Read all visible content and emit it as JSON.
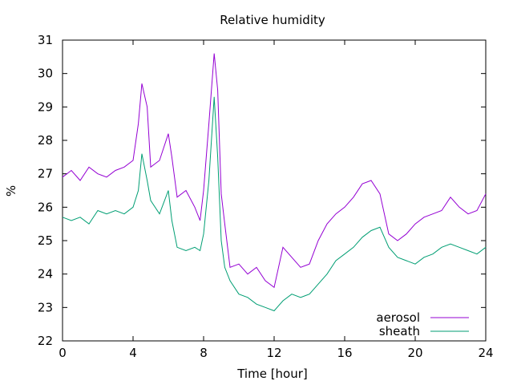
{
  "chart_data": {
    "type": "line",
    "title": "Relative humidity",
    "xlabel": "Time [hour]",
    "ylabel": "%",
    "xlim": [
      0,
      24
    ],
    "ylim": [
      22,
      31
    ],
    "xticks": [
      0,
      4,
      8,
      12,
      16,
      20,
      24
    ],
    "yticks": [
      22,
      23,
      24,
      25,
      26,
      27,
      28,
      29,
      30,
      31
    ],
    "grid": false,
    "legend_position": "bottom-right",
    "series": [
      {
        "name": "aerosol",
        "color": "#9400d3",
        "x": [
          0,
          0.5,
          1,
          1.5,
          2,
          2.5,
          3,
          3.5,
          4,
          4.3,
          4.5,
          4.8,
          5,
          5.5,
          6,
          6.2,
          6.5,
          7,
          7.5,
          7.8,
          8,
          8.3,
          8.6,
          8.8,
          9,
          9.2,
          9.5,
          10,
          10.5,
          11,
          11.5,
          12,
          12.5,
          13,
          13.5,
          14,
          14.5,
          15,
          15.5,
          16,
          16.5,
          17,
          17.5,
          18,
          18.5,
          19,
          19.5,
          20,
          20.5,
          21,
          21.5,
          22,
          22.5,
          23,
          23.5,
          24
        ],
        "y": [
          26.9,
          27.1,
          26.8,
          27.2,
          27.0,
          26.9,
          27.1,
          27.2,
          27.4,
          28.5,
          29.7,
          29.0,
          27.2,
          27.4,
          28.2,
          27.5,
          26.3,
          26.5,
          26.0,
          25.6,
          26.5,
          28.5,
          30.6,
          29.5,
          26.4,
          25.5,
          24.2,
          24.3,
          24.0,
          24.2,
          23.8,
          23.6,
          24.8,
          24.5,
          24.2,
          24.3,
          25.0,
          25.5,
          25.8,
          26.0,
          26.3,
          26.7,
          26.8,
          26.4,
          25.2,
          25.0,
          25.2,
          25.5,
          25.7,
          25.8,
          25.9,
          26.3,
          26.0,
          25.8,
          25.9,
          26.4
        ]
      },
      {
        "name": "sheath",
        "color": "#009e73",
        "x": [
          0,
          0.5,
          1,
          1.5,
          2,
          2.5,
          3,
          3.5,
          4,
          4.3,
          4.5,
          4.8,
          5,
          5.5,
          6,
          6.2,
          6.5,
          7,
          7.5,
          7.8,
          8,
          8.3,
          8.6,
          8.8,
          9,
          9.2,
          9.5,
          10,
          10.5,
          11,
          11.5,
          12,
          12.5,
          13,
          13.5,
          14,
          14.5,
          15,
          15.5,
          16,
          16.5,
          17,
          17.5,
          18,
          18.5,
          19,
          19.5,
          20,
          20.5,
          21,
          21.5,
          22,
          22.5,
          23,
          23.5,
          24
        ],
        "y": [
          25.7,
          25.6,
          25.7,
          25.5,
          25.9,
          25.8,
          25.9,
          25.8,
          26.0,
          26.5,
          27.6,
          26.8,
          26.2,
          25.8,
          26.5,
          25.6,
          24.8,
          24.7,
          24.8,
          24.7,
          25.2,
          26.8,
          29.3,
          27.5,
          25.0,
          24.2,
          23.8,
          23.4,
          23.3,
          23.1,
          23.0,
          22.9,
          23.2,
          23.4,
          23.3,
          23.4,
          23.7,
          24.0,
          24.4,
          24.6,
          24.8,
          25.1,
          25.3,
          25.4,
          24.8,
          24.5,
          24.4,
          24.3,
          24.5,
          24.6,
          24.8,
          24.9,
          24.8,
          24.7,
          24.6,
          24.8
        ]
      }
    ]
  }
}
